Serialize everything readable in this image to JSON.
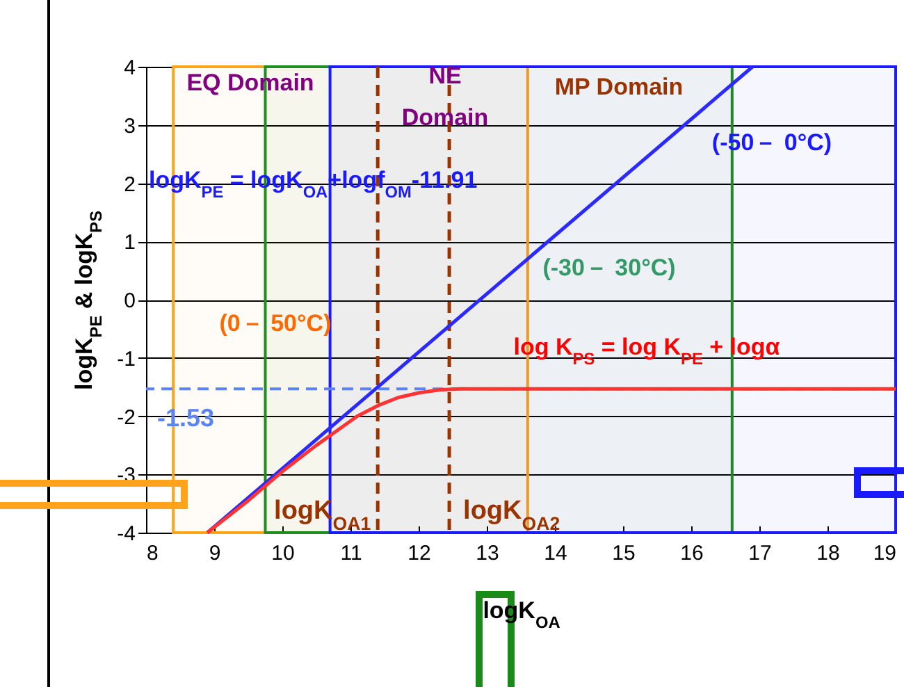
{
  "chart_data": {
    "type": "line",
    "xlabel": "logK$_{OA}$",
    "ylabel": "logK$_{PE}$ & logK$_{PS}$",
    "xlim": [
      8,
      19
    ],
    "xticks": [
      8,
      9,
      10,
      11,
      12,
      13,
      14,
      15,
      16,
      17,
      18,
      19
    ],
    "ylim": [
      -4,
      4
    ],
    "yticks": [
      -4,
      -3,
      -2,
      -1,
      0,
      1,
      2,
      3,
      4
    ],
    "grid": "y",
    "series": [
      {
        "color": "#2a2aff",
        "x": [
          8.9,
          16.9
        ],
        "values": [
          -4,
          4
        ]
      },
      {
        "color": "#ff3333",
        "x": [
          8.9,
          9.5,
          10,
          10.5,
          10.8,
          11.1,
          11.4,
          11.7,
          12,
          12.3,
          12.6,
          13,
          19
        ],
        "values": [
          -4,
          -3.45,
          -2.95,
          -2.5,
          -2.25,
          -2.0,
          -1.82,
          -1.68,
          -1.6,
          -1.55,
          -1.53,
          -1.53,
          -1.53
        ]
      }
    ],
    "ref_lines": [
      {
        "axis": "x",
        "value": 11.4,
        "label": "logK$_{OA1}$",
        "color": "#993300",
        "line_style": "dashed"
      },
      {
        "axis": "x",
        "value": 12.45,
        "label": "logK$_{OA2}$",
        "color": "#993300",
        "line_style": "dashed"
      },
      {
        "axis": "y",
        "value": -1.53,
        "label": "-1.53",
        "color": "#5b84f0",
        "line_style": "dashed"
      }
    ],
    "bands": [
      {
        "axis": "x",
        "from": 8.4,
        "to": 13.6,
        "color": "#ffa31a"
      },
      {
        "axis": "x",
        "from": 9.75,
        "to": 16.6,
        "color": "#228b22"
      },
      {
        "axis": "x",
        "from": 10.7,
        "to": 19,
        "color": "#1a1aff"
      }
    ],
    "annotations": [
      "EQ Domain",
      "NE\nDomain",
      "MP Domain",
      "logK$_{PE}$ = logK$_{OA}$+logf$_{OM}$-11.91",
      "(-50－ 0°C)",
      "(-30－ 30°C)",
      "(0－ 50°C)",
      "log K$_{PS}$ =  log K$_{PE}$ + logα"
    ]
  }
}
